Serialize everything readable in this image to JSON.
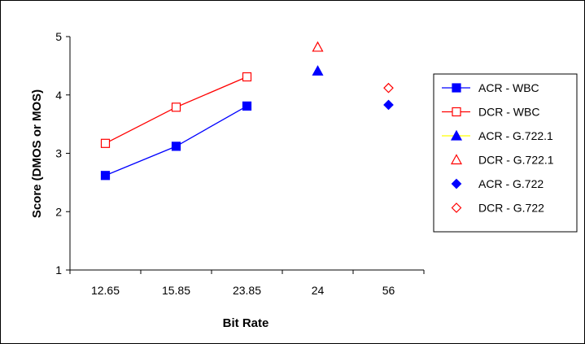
{
  "chart_data": {
    "type": "line",
    "title": "",
    "xlabel": "Bit Rate",
    "ylabel": "Score (DMOS or MOS)",
    "categories": [
      "12.65",
      "15.85",
      "23.85",
      "24",
      "56"
    ],
    "ylim": [
      1,
      5
    ],
    "yticks": [
      "1",
      "2",
      "3",
      "4",
      "5"
    ],
    "grid": false,
    "legend_position": "right",
    "series": [
      {
        "name": "ACR - WBC",
        "color": "#0000ff",
        "marker": "square-filled",
        "line": true,
        "values": [
          2.62,
          3.12,
          3.81,
          null,
          null
        ]
      },
      {
        "name": "DCR - WBC",
        "color": "#ff0000",
        "marker": "square-open",
        "line": true,
        "values": [
          3.17,
          3.79,
          4.31,
          null,
          null
        ]
      },
      {
        "name": "ACR - G.722.1",
        "color": "#0000ff",
        "legend_line_color": "#ffff00",
        "marker": "triangle-filled",
        "line": false,
        "values": [
          null,
          null,
          null,
          4.41,
          null
        ]
      },
      {
        "name": "DCR - G.722.1",
        "color": "#ff0000",
        "marker": "triangle-open",
        "line": false,
        "values": [
          null,
          null,
          null,
          4.82,
          null
        ]
      },
      {
        "name": "ACR - G.722",
        "color": "#0000ff",
        "marker": "diamond-filled",
        "line": false,
        "values": [
          null,
          null,
          null,
          null,
          3.83
        ]
      },
      {
        "name": "DCR - G.722",
        "color": "#ff0000",
        "marker": "diamond-open",
        "line": false,
        "values": [
          null,
          null,
          null,
          null,
          4.12
        ]
      }
    ]
  }
}
